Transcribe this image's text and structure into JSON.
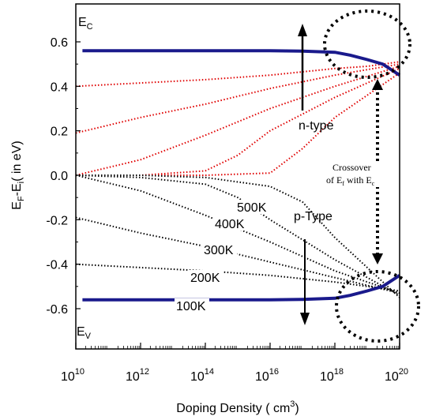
{
  "chart_data": {
    "type": "line",
    "xlabel": "Doping Density ( cm",
    "xlabel_sup": "3",
    "xlabel_end": ")",
    "ylabel": "E",
    "ylabel_sub": "F",
    "ylabel_mid": "-E",
    "ylabel_sub2": "i",
    "ylabel_end": "( in eV)",
    "x_scale": "log",
    "xlim": [
      10000000000.0,
      1e+20
    ],
    "ylim": [
      -0.62,
      0.62
    ],
    "x_ticks": [
      {
        "base": "10",
        "exp": "10",
        "value": 10000000000.0
      },
      {
        "base": "10",
        "exp": "12",
        "value": 1000000000000.0
      },
      {
        "base": "10",
        "exp": "14",
        "value": 100000000000000.0
      },
      {
        "base": "10",
        "exp": "16",
        "value": 1e+16
      },
      {
        "base": "10",
        "exp": "18",
        "value": 1e+18
      },
      {
        "base": "10",
        "exp": "20",
        "value": 1e+20
      }
    ],
    "y_ticks": [
      "0.6",
      "0.4",
      "0.2",
      "0.0",
      "-0.2",
      "-0.4",
      "-0.6"
    ],
    "y_tick_values": [
      0.6,
      0.4,
      0.2,
      0.0,
      -0.2,
      -0.4,
      -0.6
    ],
    "band_edges": [
      {
        "label": "E",
        "label_sub": "C",
        "color": "#1a1a8c",
        "x": [
          10000000000.0,
          1e+16,
          1e+17,
          1e+18,
          3e+18,
          1e+19,
          3e+19,
          1e+20
        ],
        "y": [
          0.56,
          0.56,
          0.558,
          0.553,
          0.54,
          0.52,
          0.5,
          0.45
        ]
      },
      {
        "label": "E",
        "label_sub": "V",
        "color": "#1a1a8c",
        "x": [
          10000000000.0,
          1e+16,
          1e+17,
          1e+18,
          3e+18,
          1e+19,
          3e+19,
          1e+20
        ],
        "y": [
          -0.56,
          -0.56,
          -0.558,
          -0.553,
          -0.54,
          -0.52,
          -0.5,
          -0.45
        ]
      }
    ],
    "n_type_series": [
      {
        "color": "#e00000",
        "x": [
          10000000000.0,
          100000000000000.0,
          1e+16,
          1e+18,
          1e+19,
          1e+20
        ],
        "y": [
          0.4,
          0.43,
          0.45,
          0.48,
          0.49,
          0.51
        ]
      },
      {
        "color": "#e00000",
        "x": [
          10000000000.0,
          1000000000000.0,
          100000000000000.0,
          1e+16,
          1e+18,
          1e+20
        ],
        "y": [
          0.19,
          0.26,
          0.32,
          0.39,
          0.45,
          0.5
        ]
      },
      {
        "color": "#e00000",
        "x": [
          10000000000.0,
          1000000000000.0,
          100000000000000.0,
          1e+16,
          1e+18,
          1e+20
        ],
        "y": [
          0.0,
          0.07,
          0.18,
          0.3,
          0.4,
          0.49
        ]
      },
      {
        "color": "#e00000",
        "x": [
          10000000000.0,
          1000000000000.0,
          100000000000000.0,
          1000000000000000.0,
          1e+16,
          1e+18,
          1e+20
        ],
        "y": [
          0.0,
          0.0,
          0.02,
          0.09,
          0.2,
          0.35,
          0.48
        ]
      },
      {
        "color": "#e00000",
        "x": [
          10000000000.0,
          10000000000000.0,
          100000000000000.0,
          1e+16,
          1e+17,
          1e+18,
          1e+20
        ],
        "y": [
          0.0,
          0.0,
          0.0,
          0.01,
          0.12,
          0.26,
          0.46
        ]
      }
    ],
    "p_type_series": [
      {
        "label": "100K",
        "color": "#000000",
        "x": [
          10000000000.0,
          100000000000000.0,
          1e+16,
          1e+18,
          1e+19,
          1e+20
        ],
        "y": [
          -0.4,
          -0.43,
          -0.45,
          -0.48,
          -0.5,
          -0.52
        ]
      },
      {
        "label": "200K",
        "color": "#000000",
        "x": [
          10000000000.0,
          1000000000000.0,
          100000000000000.0,
          1e+16,
          1e+18,
          1e+20
        ],
        "y": [
          -0.19,
          -0.26,
          -0.32,
          -0.39,
          -0.46,
          -0.53
        ]
      },
      {
        "label": "300K",
        "color": "#000000",
        "x": [
          10000000000.0,
          1000000000000.0,
          100000000000000.0,
          1e+16,
          1e+18,
          1e+20
        ],
        "y": [
          0.0,
          -0.07,
          -0.18,
          -0.3,
          -0.43,
          -0.53
        ]
      },
      {
        "label": "400K",
        "color": "#000000",
        "x": [
          10000000000.0,
          1000000000000.0,
          100000000000000.0,
          1000000000000000.0,
          1e+16,
          1e+18,
          1e+20
        ],
        "y": [
          0.0,
          -0.01,
          -0.04,
          -0.1,
          -0.2,
          -0.38,
          -0.54
        ]
      },
      {
        "label": "500K",
        "color": "#000000",
        "x": [
          10000000000.0,
          1000000000000.0,
          100000000000000.0,
          1e+16,
          1e+17,
          1e+18,
          1e+20
        ],
        "y": [
          0.0,
          0.0,
          -0.01,
          -0.05,
          -0.12,
          -0.28,
          -0.55
        ]
      }
    ],
    "annotations": {
      "n_type": "n-type",
      "p_type": "p-Type",
      "crossover_line1": "Crossover",
      "crossover_line2_a": "of E",
      "crossover_line2_sub1": "f",
      "crossover_line2_b": " with E",
      "crossover_line2_sub2": "c"
    },
    "grid": false,
    "legend": "none"
  }
}
